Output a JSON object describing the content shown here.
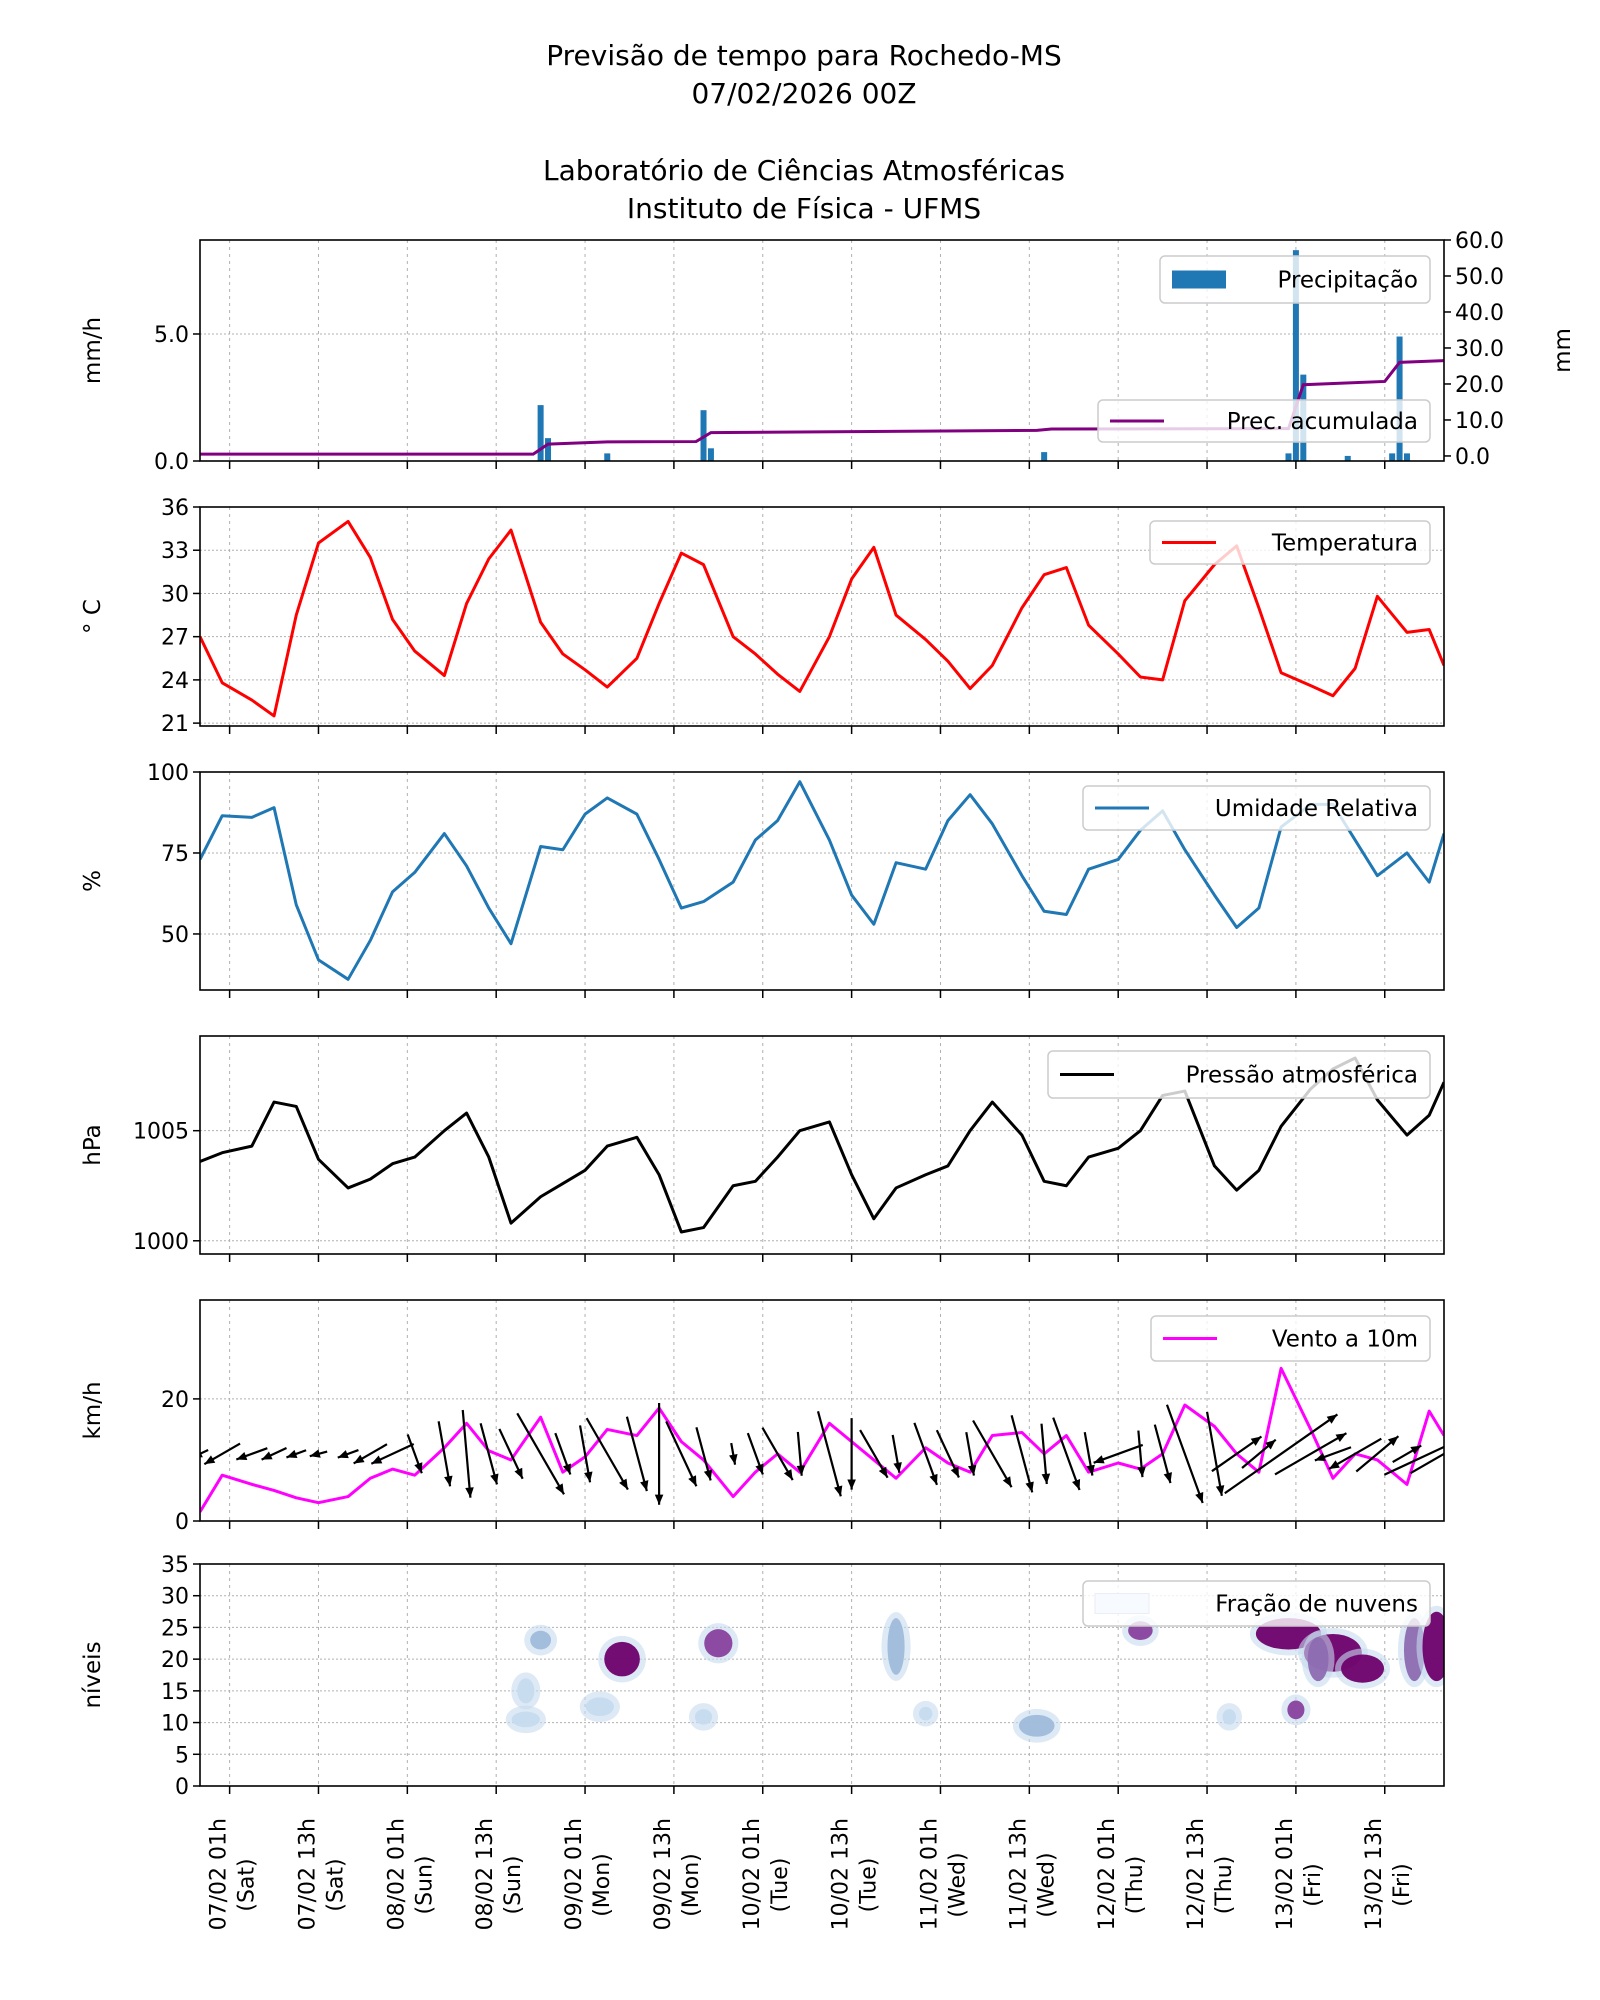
{
  "header": {
    "title_line1": "Previsão de tempo para Rochedo-MS",
    "title_line2": "07/02/2026 00Z",
    "title_line3": "Laboratório de Ciências Atmosféricas",
    "title_line4": "Instituto de Física - UFMS"
  },
  "chart_data": {
    "xlim": [
      "06/02 21h",
      "13/02 21h"
    ],
    "x_ticks": [
      {
        "time": "07/02 01h",
        "date": "07/02 01h",
        "day": "(Sat)"
      },
      {
        "time": "07/02 13h",
        "date": "07/02 13h",
        "day": "(Sat)"
      },
      {
        "time": "08/02 01h",
        "date": "08/02 01h",
        "day": "(Sun)"
      },
      {
        "time": "08/02 13h",
        "date": "08/02 13h",
        "day": "(Sun)"
      },
      {
        "time": "09/02 01h",
        "date": "09/02 01h",
        "day": "(Mon)"
      },
      {
        "time": "09/02 13h",
        "date": "09/02 13h",
        "day": "(Mon)"
      },
      {
        "time": "10/02 01h",
        "date": "10/02 01h",
        "day": "(Tue)"
      },
      {
        "time": "10/02 13h",
        "date": "10/02 13h",
        "day": "(Tue)"
      },
      {
        "time": "11/02 01h",
        "date": "11/02 01h",
        "day": "(Wed)"
      },
      {
        "time": "11/02 13h",
        "date": "11/02 13h",
        "day": "(Wed)"
      },
      {
        "time": "12/02 01h",
        "date": "12/02 01h",
        "day": "(Thu)"
      },
      {
        "time": "12/02 13h",
        "date": "12/02 13h",
        "day": "(Thu)"
      },
      {
        "time": "13/02 01h",
        "date": "13/02 01h",
        "day": "(Fri)"
      },
      {
        "time": "13/02 13h",
        "date": "13/02 13h",
        "day": "(Fri)"
      }
    ],
    "grid": true,
    "x": [
      "06/02 21h",
      "07/02 00h",
      "07/02 04h",
      "07/02 07h",
      "07/02 10h",
      "07/02 13h",
      "07/02 17h",
      "07/02 20h",
      "07/02 23h",
      "08/02 02h",
      "08/02 06h",
      "08/02 09h",
      "08/02 12h",
      "08/02 15h",
      "08/02 19h",
      "08/02 22h",
      "09/02 01h",
      "09/02 04h",
      "09/02 08h",
      "09/02 11h",
      "09/02 14h",
      "09/02 17h",
      "09/02 21h",
      "10/02 00h",
      "10/02 03h",
      "10/02 06h",
      "10/02 10h",
      "10/02 13h",
      "10/02 16h",
      "10/02 19h",
      "10/02 23h",
      "11/02 02h",
      "11/02 05h",
      "11/02 08h",
      "11/02 12h",
      "11/02 15h",
      "11/02 18h",
      "11/02 21h",
      "12/02 01h",
      "12/02 04h",
      "12/02 07h",
      "12/02 10h",
      "12/02 14h",
      "12/02 17h",
      "12/02 20h",
      "12/02 23h",
      "13/02 03h",
      "13/02 06h",
      "13/02 09h",
      "13/02 12h",
      "13/02 16h",
      "13/02 19h",
      "13/02 21h"
    ],
    "panels": [
      {
        "type": "bar",
        "ylabel": "mm/h",
        "ylim": [
          0,
          8.7
        ],
        "yticks": [
          0,
          5
        ],
        "ytick_labels": [
          "0.0",
          "5.0"
        ],
        "ylabel_right": "mm",
        "ylim_right": [
          -1.4,
          60
        ],
        "yticks_right": [
          0,
          10,
          20,
          30,
          40,
          50,
          60
        ],
        "ytick_labels_right": [
          "0.0",
          "10.0",
          "20.0",
          "30.0",
          "40.0",
          "50.0",
          "60.0"
        ],
        "bars": {
          "name": "Precipitação",
          "color": "#1f77b4",
          "points": [
            [
              "08/02 19h",
              2.2
            ],
            [
              "08/02 20h",
              0.9
            ],
            [
              "09/02 04h",
              0.3
            ],
            [
              "09/02 17h",
              2.0
            ],
            [
              "09/02 18h",
              0.5
            ],
            [
              "11/02 15h",
              0.35
            ],
            [
              "13/02 00h",
              0.3
            ],
            [
              "13/02 01h",
              8.3
            ],
            [
              "13/02 02h",
              3.4
            ],
            [
              "13/02 08h",
              0.2
            ],
            [
              "13/02 14h",
              0.3
            ],
            [
              "13/02 15h",
              4.9
            ],
            [
              "13/02 16h",
              0.3
            ]
          ]
        },
        "line": {
          "name": "Prec. acumulada",
          "color": "#800080",
          "axis": "right",
          "points": [
            [
              "06/02 21h",
              0.5
            ],
            [
              "08/02 18h",
              0.5
            ],
            [
              "08/02 20h",
              3.3
            ],
            [
              "09/02 04h",
              3.9
            ],
            [
              "09/02 16h",
              4.0
            ],
            [
              "09/02 18h",
              6.5
            ],
            [
              "11/02 14h",
              7.1
            ],
            [
              "11/02 16h",
              7.5
            ],
            [
              "13/02 00h",
              7.6
            ],
            [
              "13/02 02h",
              19.8
            ],
            [
              "13/02 13h",
              20.7
            ],
            [
              "13/02 15h",
              26.0
            ],
            [
              "13/02 21h",
              26.5
            ]
          ]
        }
      },
      {
        "type": "line",
        "ylabel": "° C",
        "ylim": [
          20.8,
          36
        ],
        "yticks": [
          21,
          24,
          27,
          30,
          33,
          36
        ],
        "ytick_labels": [
          "21",
          "24",
          "27",
          "30",
          "33",
          "36"
        ],
        "series": [
          {
            "name": "Temperatura",
            "color": "#ff0000",
            "values": [
              27,
              23.8,
              22.6,
              21.5,
              28.5,
              33.5,
              35,
              32.5,
              28.2,
              26,
              24.3,
              29.3,
              32.4,
              34.4,
              28,
              25.8,
              24.7,
              23.5,
              25.5,
              29.3,
              32.8,
              32,
              27,
              25.8,
              24.4,
              23.2,
              27,
              31,
              33.2,
              28.5,
              26.8,
              25.3,
              23.4,
              25,
              29,
              31.3,
              31.8,
              27.8,
              25.8,
              24.2,
              24,
              29.5,
              32,
              33.3,
              29,
              24.5,
              23.6,
              22.9,
              24.8,
              29.8,
              27.3,
              27.5,
              25
            ]
          }
        ]
      },
      {
        "type": "line",
        "ylabel": "%",
        "ylim": [
          32.7,
          100
        ],
        "yticks": [
          50,
          75,
          100
        ],
        "ytick_labels": [
          "50",
          "75",
          "100"
        ],
        "series": [
          {
            "name": "Umidade Relativa",
            "color": "#1f77b4",
            "values": [
              73,
              86.5,
              86,
              89,
              59,
              42,
              36,
              48,
              63,
              69,
              81,
              71,
              58,
              47,
              77,
              76,
              87,
              92,
              87,
              73,
              58,
              60,
              66,
              79,
              85,
              97,
              79,
              62,
              53,
              72,
              70,
              85,
              93,
              84,
              68,
              57,
              56,
              70,
              73,
              82,
              88,
              76,
              62,
              52,
              58,
              83,
              90,
              90,
              79,
              68,
              75,
              66,
              81
            ]
          }
        ]
      },
      {
        "type": "line",
        "ylabel": "hPa",
        "ylim": [
          999.4,
          1009.3
        ],
        "yticks": [
          1000,
          1005
        ],
        "ytick_labels": [
          "1000",
          "1005"
        ],
        "series": [
          {
            "name": "Pressão atmosférica",
            "color": "#000000",
            "values": [
              1003.6,
              1004.0,
              1004.3,
              1006.3,
              1006.1,
              1003.7,
              1002.4,
              1002.8,
              1003.5,
              1003.8,
              1005.0,
              1005.8,
              1003.8,
              1000.8,
              1002.0,
              1002.6,
              1003.2,
              1004.3,
              1004.7,
              1003.0,
              1000.4,
              1000.6,
              1002.5,
              1002.7,
              1003.8,
              1005.0,
              1005.4,
              1003.0,
              1001.0,
              1002.4,
              1003.0,
              1003.4,
              1005.0,
              1006.3,
              1004.8,
              1002.7,
              1002.5,
              1003.8,
              1004.2,
              1005.0,
              1006.6,
              1006.8,
              1003.4,
              1002.3,
              1003.2,
              1005.2,
              1006.9,
              1007.8,
              1008.3,
              1006.4,
              1004.8,
              1005.7,
              1007.2
            ]
          }
        ]
      },
      {
        "type": "line+quiver",
        "ylabel": "km/h",
        "ylim": [
          0,
          36.2
        ],
        "yticks": [
          0,
          20
        ],
        "ytick_labels": [
          "0",
          "20"
        ],
        "series": [
          {
            "name": "Vento a 10m",
            "color": "#ff00ff",
            "values": [
              1.5,
              7.5,
              6,
              5,
              3.8,
              3,
              4,
              7,
              8.5,
              7.5,
              12,
              16,
              11.5,
              10,
              17,
              8,
              10.5,
              15,
              14,
              18.5,
              13,
              10,
              4,
              8,
              11,
              8,
              16,
              13,
              10,
              7,
              12,
              9.5,
              8,
              14,
              14.5,
              11,
              14,
              8,
              9.5,
              8.5,
              11,
              19,
              15.5,
              11,
              8,
              25,
              15,
              7,
              11,
              10,
              6,
              18,
              14
            ]
          }
        ],
        "arrow_direction_deg": [
          205,
          210,
          200,
          205,
          200,
          195,
          200,
          210,
          205,
          290,
          280,
          275,
          285,
          295,
          300,
          290,
          280,
          300,
          285,
          270,
          295,
          285,
          280,
          290,
          300,
          275,
          285,
          270,
          300,
          280,
          290,
          295,
          280,
          300,
          285,
          275,
          290,
          280,
          200,
          275,
          285,
          290,
          280,
          35,
          40,
          35,
          30,
          200,
          210,
          40,
          30,
          25,
          30
        ],
        "arrow_color": "#000000"
      },
      {
        "type": "contour",
        "ylabel": "níveis",
        "ylim": [
          0,
          35
        ],
        "yticks": [
          0,
          5,
          10,
          15,
          20,
          25,
          30,
          35
        ],
        "ytick_labels": [
          "0",
          "5",
          "10",
          "15",
          "20",
          "25",
          "30",
          "35"
        ],
        "legend": "Fração de nuvens",
        "colormap": [
          "#f7fbff",
          "#c6dbef",
          "#9ebcda",
          "#8c6bb1",
          "#88419d",
          "#6e016b"
        ],
        "cells": [
          {
            "time": "08/02 19h",
            "level": 23,
            "fraction": 0.3,
            "duration_h": 2,
            "depth_levels": 2
          },
          {
            "time": "08/02 17h",
            "level": 10.5,
            "fraction": 0.25,
            "duration_h": 3,
            "depth_levels": 1.5
          },
          {
            "time": "08/02 17h",
            "level": 15,
            "fraction": 0.1,
            "duration_h": 1.5,
            "depth_levels": 3
          },
          {
            "time": "09/02 03h",
            "level": 12.5,
            "fraction": 0.2,
            "duration_h": 3,
            "depth_levels": 2
          },
          {
            "time": "09/02 06h",
            "level": 20,
            "fraction": 0.9,
            "duration_h": 4,
            "depth_levels": 4.5
          },
          {
            "time": "09/02 17h",
            "level": 10.9,
            "fraction": 0.15,
            "duration_h": 1.5,
            "depth_levels": 1.5
          },
          {
            "time": "09/02 19h",
            "level": 22.5,
            "fraction": 0.85,
            "duration_h": 3,
            "depth_levels": 3.5
          },
          {
            "time": "10/02 19h",
            "level": 22,
            "fraction": 0.4,
            "duration_h": 1.5,
            "depth_levels": 8
          },
          {
            "time": "10/02 23h",
            "level": 11.4,
            "fraction": 0.15,
            "duration_h": 1,
            "depth_levels": 1.2
          },
          {
            "time": "11/02 14h",
            "level": 9.5,
            "fraction": 0.45,
            "duration_h": 4,
            "depth_levels": 2.5
          },
          {
            "time": "12/02 04h",
            "level": 24.5,
            "fraction": 0.85,
            "duration_h": 2.5,
            "depth_levels": 2
          },
          {
            "time": "12/02 16h",
            "level": 10.9,
            "fraction": 0.15,
            "duration_h": 1,
            "depth_levels": 1.5
          },
          {
            "time": "13/02 01h",
            "level": 12,
            "fraction": 0.85,
            "duration_h": 1.5,
            "depth_levels": 2
          },
          {
            "time": "13/02 00h",
            "level": 24,
            "fraction": 0.95,
            "duration_h": 8,
            "depth_levels": 4
          },
          {
            "time": "13/02 06h",
            "level": 21,
            "fraction": 0.95,
            "duration_h": 7,
            "depth_levels": 5
          },
          {
            "time": "13/02 10h",
            "level": 18.5,
            "fraction": 0.95,
            "duration_h": 5,
            "depth_levels": 3.5
          },
          {
            "time": "13/02 04h",
            "level": 20,
            "fraction": 0.5,
            "duration_h": 2,
            "depth_levels": 6
          },
          {
            "time": "13/02 17h",
            "level": 21.5,
            "fraction": 0.6,
            "duration_h": 2,
            "depth_levels": 9
          },
          {
            "time": "13/02 20h",
            "level": 22,
            "fraction": 0.9,
            "duration_h": 3,
            "depth_levels": 10
          }
        ]
      }
    ]
  }
}
